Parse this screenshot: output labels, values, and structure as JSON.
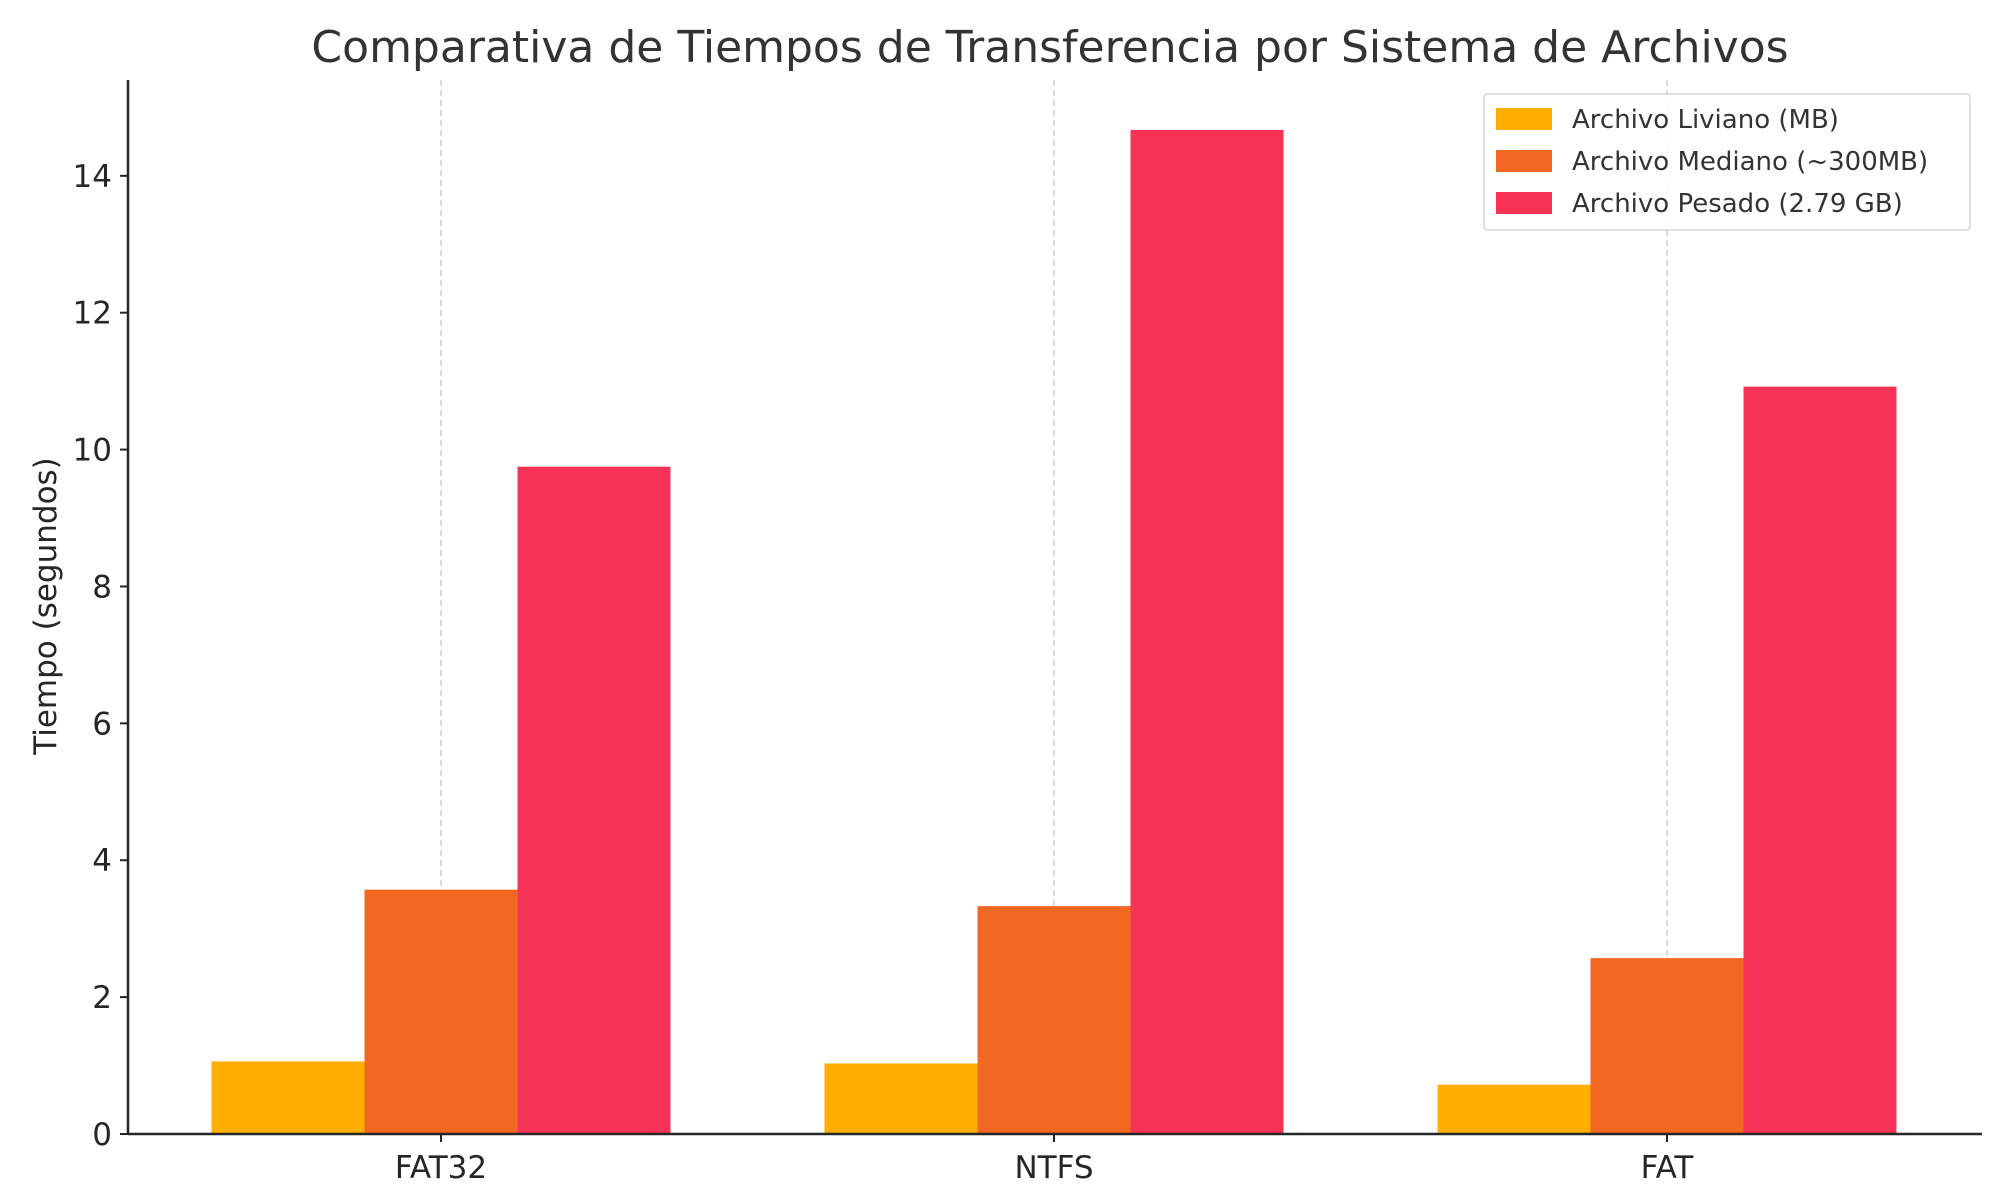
{
  "chart_data": {
    "type": "bar",
    "title": "Comparativa de Tiempos de Transferencia por Sistema de Archivos",
    "xlabel": "",
    "ylabel": "Tiempo (segundos)",
    "categories": [
      "FAT32",
      "NTFS",
      "FAT"
    ],
    "series": [
      {
        "name": "Archivo Liviano (MB)",
        "color": "#FFAE00",
        "values": [
          1.06,
          1.03,
          0.72
        ]
      },
      {
        "name": "Archivo Mediano (~300MB)",
        "color": "#F26822",
        "values": [
          3.57,
          3.33,
          2.57
        ]
      },
      {
        "name": "Archivo Pesado (2.79 GB)",
        "color": "#F63356",
        "values": [
          9.75,
          14.67,
          10.92
        ]
      }
    ],
    "ylim": [
      0,
      15.4
    ],
    "yticks": [
      0,
      2,
      4,
      6,
      8,
      10,
      12,
      14
    ],
    "grid": {
      "x": true,
      "y": false
    },
    "legend_position": "top-right"
  }
}
